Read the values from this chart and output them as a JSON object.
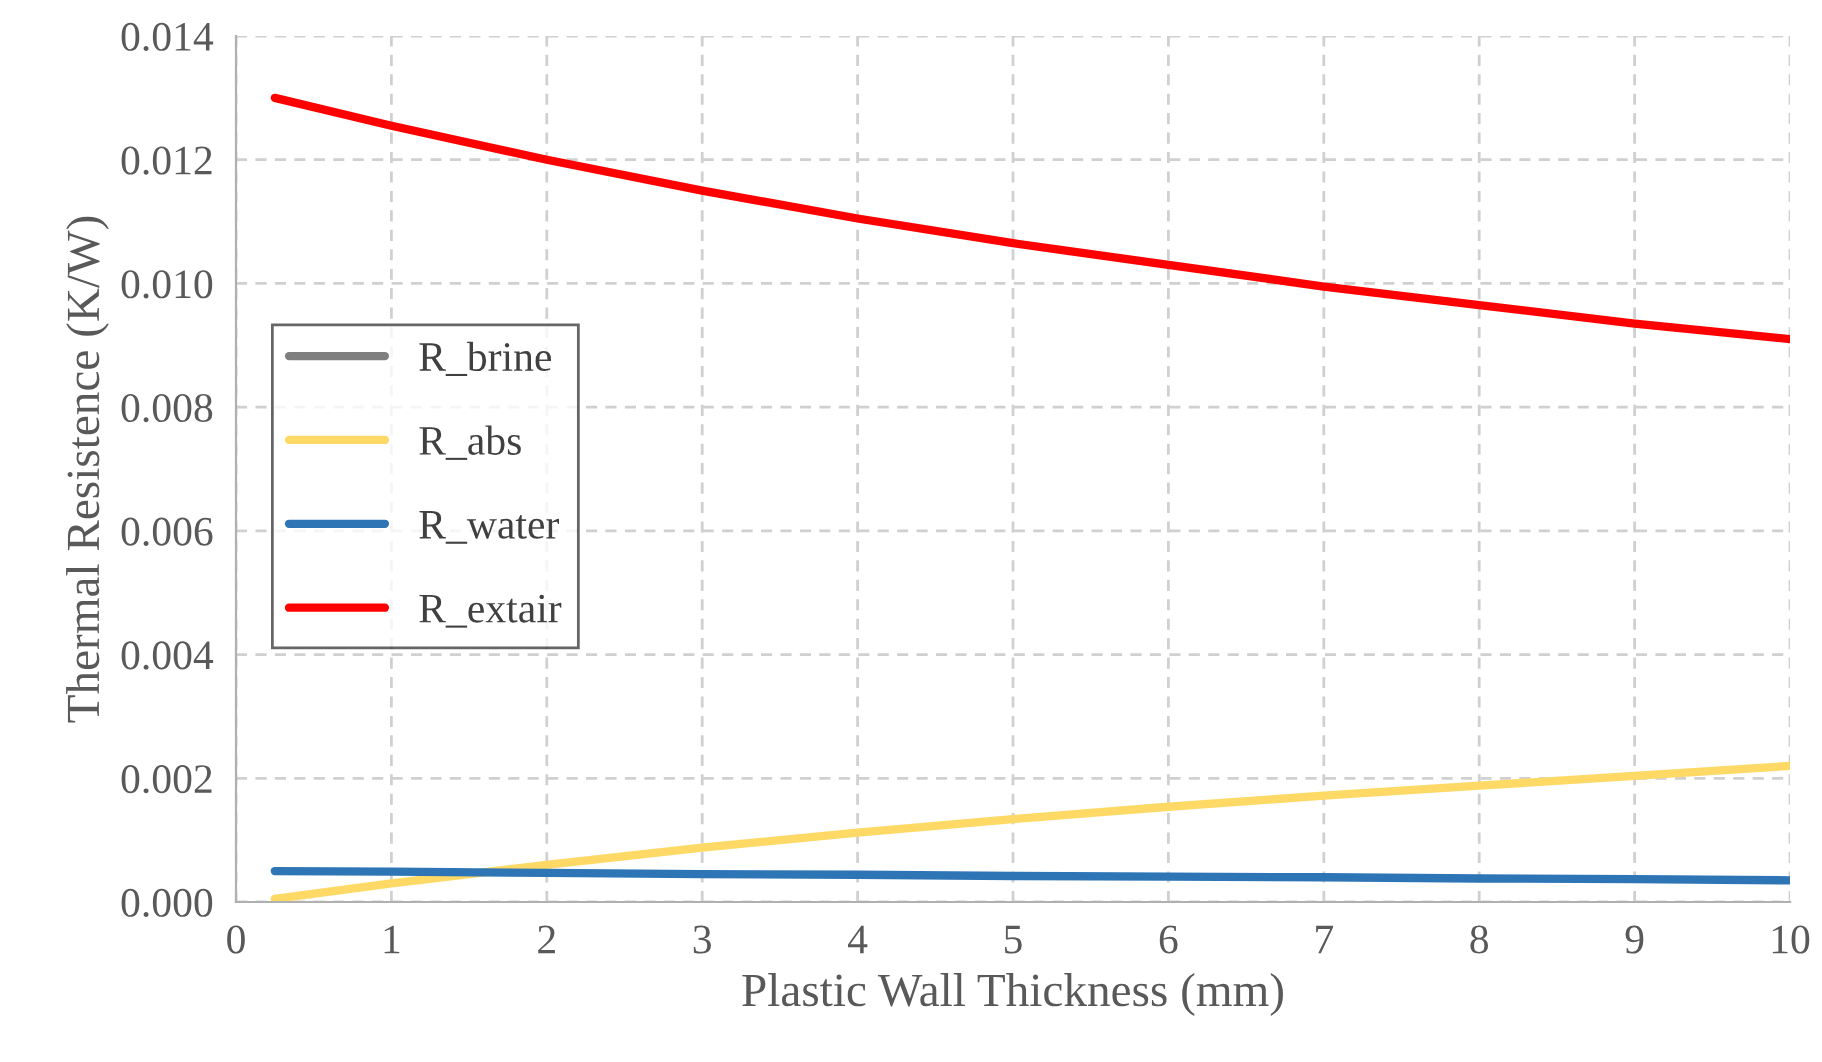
{
  "chart_data": {
    "type": "line",
    "xlabel": "Plastic Wall Thickness (mm)",
    "ylabel": "Thermal Resistence (K/W)",
    "x": [
      0.25,
      1,
      2,
      3,
      4,
      5,
      6,
      7,
      8,
      9,
      10
    ],
    "series": [
      {
        "name": "R_brine",
        "color": "#7f7f7f",
        "values": [
          null,
          null,
          null,
          null,
          null,
          null,
          null,
          null,
          null,
          null,
          null
        ]
      },
      {
        "name": "R_abs",
        "color": "#ffd966",
        "values": [
          5e-05,
          0.0003,
          0.0006,
          0.00088,
          0.00112,
          0.00134,
          0.00154,
          0.00172,
          0.00188,
          0.00204,
          0.0022
        ]
      },
      {
        "name": "R_water",
        "color": "#2e75b6",
        "values": [
          0.0005,
          0.00049,
          0.00047,
          0.00045,
          0.00044,
          0.00042,
          0.00041,
          0.0004,
          0.00038,
          0.00037,
          0.00035
        ]
      },
      {
        "name": "R_extair",
        "color": "#ff0000",
        "values": [
          0.013,
          0.01255,
          0.012,
          0.0115,
          0.01105,
          0.01065,
          0.0103,
          0.00995,
          0.00965,
          0.00935,
          0.0091
        ]
      }
    ],
    "xlim": [
      0,
      10
    ],
    "xticks": [
      0,
      1,
      2,
      3,
      4,
      5,
      6,
      7,
      8,
      9,
      10
    ],
    "ylim": [
      0,
      0.014
    ],
    "yticks": [
      {
        "value": 0,
        "label": "0.000"
      },
      {
        "value": 0.002,
        "label": "0.002"
      },
      {
        "value": 0.004,
        "label": "0.004"
      },
      {
        "value": 0.006,
        "label": "0.006"
      },
      {
        "value": 0.008,
        "label": "0.008"
      },
      {
        "value": 0.01,
        "label": "0.010"
      },
      {
        "value": 0.012,
        "label": "0.012"
      },
      {
        "value": 0.014,
        "label": "0.014"
      }
    ],
    "grid": true,
    "legend": "left",
    "line_style": "solid",
    "marker": "none"
  }
}
